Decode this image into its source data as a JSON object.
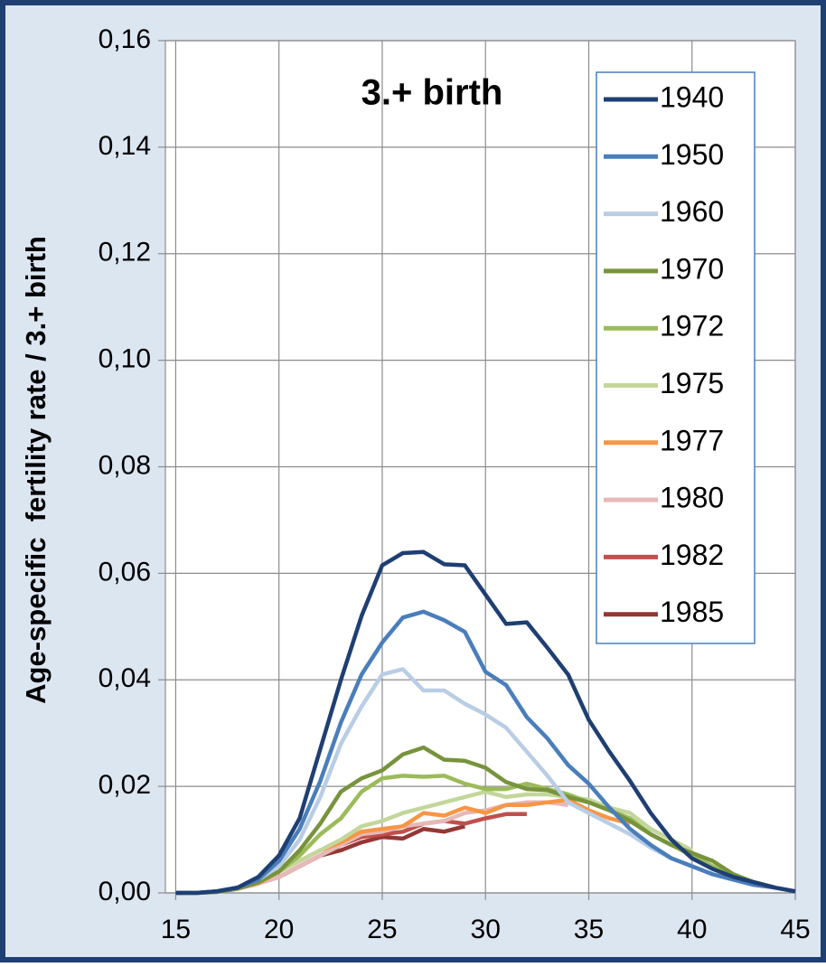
{
  "chart_data": {
    "type": "line",
    "annotation": "3.+ birth",
    "y_label": "Age-specific  fertility rate / 3.+ birth",
    "x": [
      15,
      16,
      17,
      18,
      19,
      20,
      21,
      22,
      23,
      24,
      25,
      26,
      27,
      28,
      29,
      30,
      31,
      32,
      33,
      34,
      35,
      36,
      37,
      38,
      39,
      40,
      41,
      42,
      43,
      44,
      45
    ],
    "xlim": [
      14.5,
      45
    ],
    "xticks": [
      15,
      20,
      25,
      30,
      35,
      40,
      45
    ],
    "ylim": [
      0,
      0.16
    ],
    "yticks": [
      {
        "value": 0,
        "label": "0,00"
      },
      {
        "value": 0.02,
        "label": "0,02"
      },
      {
        "value": 0.04,
        "label": "0,04"
      },
      {
        "value": 0.06,
        "label": "0,06"
      },
      {
        "value": 0.08,
        "label": "0,08"
      },
      {
        "value": 0.1,
        "label": "0,10"
      },
      {
        "value": 0.12,
        "label": "0,12"
      },
      {
        "value": 0.14,
        "label": "0,14"
      },
      {
        "value": 0.16,
        "label": "0,16"
      }
    ],
    "grid": true,
    "legend": "upper right",
    "series": [
      {
        "name": "1940",
        "color": "#1f3f73",
        "values": [
          0,
          0,
          0.0003,
          0.001,
          0.003,
          0.007,
          0.014,
          0.027,
          0.04,
          0.052,
          0.0615,
          0.0638,
          0.064,
          0.0617,
          0.0615,
          0.056,
          0.0505,
          0.0508,
          0.046,
          0.041,
          0.0325,
          0.0265,
          0.021,
          0.015,
          0.01,
          0.0065,
          0.0045,
          0.003,
          0.002,
          0.001,
          0.0003
        ]
      },
      {
        "name": "1950",
        "color": "#4a7ebb",
        "values": [
          0,
          0,
          0.0003,
          0.001,
          0.0025,
          0.006,
          0.012,
          0.021,
          0.032,
          0.041,
          0.047,
          0.0517,
          0.0528,
          0.0512,
          0.049,
          0.0415,
          0.039,
          0.033,
          0.029,
          0.024,
          0.0205,
          0.016,
          0.012,
          0.009,
          0.0065,
          0.005,
          0.0035,
          0.0025,
          0.0015,
          0.001,
          null
        ]
      },
      {
        "name": "1960",
        "color": "#b9cde5",
        "values": [
          0,
          0,
          0.0003,
          0.001,
          0.0025,
          0.005,
          0.01,
          0.018,
          0.028,
          0.035,
          0.041,
          0.042,
          0.038,
          0.038,
          0.0355,
          0.0335,
          0.031,
          0.0265,
          0.022,
          0.017,
          0.015,
          0.013,
          0.011,
          0.0085,
          0.0065,
          0.005,
          0.0035,
          0.0025,
          0.0015,
          null,
          null
        ]
      },
      {
        "name": "1970",
        "color": "#77933c",
        "values": [
          0,
          0,
          0.0002,
          0.0008,
          0.002,
          0.004,
          0.008,
          0.013,
          0.019,
          0.0215,
          0.023,
          0.026,
          0.0273,
          0.025,
          0.0248,
          0.0235,
          0.0208,
          0.0195,
          0.0193,
          0.018,
          0.017,
          0.0155,
          0.0135,
          0.011,
          0.009,
          0.0075,
          0.006,
          0.0035,
          0.002,
          0.001,
          null
        ]
      },
      {
        "name": "1972",
        "color": "#9bbb59",
        "values": [
          0,
          0,
          0.0002,
          0.0008,
          0.002,
          0.004,
          0.007,
          0.011,
          0.014,
          0.019,
          0.0215,
          0.022,
          0.0218,
          0.022,
          0.0205,
          0.0195,
          0.0195,
          0.0205,
          0.0195,
          0.0185,
          0.017,
          0.0155,
          0.014,
          0.011,
          0.009,
          0.007,
          0.005,
          0.003,
          0.002,
          0.001,
          null
        ]
      },
      {
        "name": "1975",
        "color": "#c3d69b",
        "values": [
          0,
          0,
          0.0002,
          0.0008,
          0.002,
          0.004,
          0.006,
          0.008,
          0.01,
          0.0125,
          0.0135,
          0.015,
          0.016,
          0.017,
          0.018,
          0.019,
          0.018,
          0.0185,
          0.0185,
          0.018,
          0.0175,
          0.016,
          0.015,
          0.012,
          0.01,
          0.008,
          null,
          null,
          null,
          null,
          null
        ]
      },
      {
        "name": "1977",
        "color": "#f79646",
        "values": [
          0,
          0,
          0.0002,
          0.0008,
          0.0018,
          0.004,
          0.006,
          0.008,
          0.0095,
          0.0115,
          0.012,
          0.0125,
          0.015,
          0.0145,
          0.016,
          0.015,
          0.0165,
          0.0165,
          0.017,
          0.0175,
          0.0155,
          0.014,
          0.013,
          null,
          null,
          null,
          null,
          null,
          null,
          null,
          null
        ]
      },
      {
        "name": "1980",
        "color": "#e6b9b8",
        "values": [
          0,
          0,
          0.0002,
          0.0008,
          0.0018,
          0.003,
          0.005,
          0.007,
          0.009,
          0.011,
          0.0115,
          0.0125,
          0.013,
          0.0135,
          0.015,
          0.0155,
          0.0165,
          0.017,
          0.017,
          0.0165,
          null,
          null,
          null,
          null,
          null,
          null,
          null,
          null,
          null,
          null,
          null
        ]
      },
      {
        "name": "1982",
        "color": "#c0504d",
        "values": [
          0,
          0,
          0.0002,
          0.0008,
          0.0018,
          0.003,
          0.005,
          0.007,
          0.009,
          0.0105,
          0.011,
          0.0115,
          0.013,
          0.0135,
          0.013,
          0.014,
          0.0148,
          0.0148,
          null,
          null,
          null,
          null,
          null,
          null,
          null,
          null,
          null,
          null,
          null,
          null,
          null
        ]
      },
      {
        "name": "1985",
        "color": "#953735",
        "values": [
          0,
          0,
          0.0002,
          0.0008,
          0.0018,
          0.003,
          0.005,
          0.007,
          0.008,
          0.0095,
          0.0105,
          0.0102,
          0.012,
          0.0115,
          0.0125,
          null,
          null,
          null,
          null,
          null,
          null,
          null,
          null,
          null,
          null,
          null,
          null,
          null,
          null,
          null,
          null
        ]
      }
    ]
  }
}
